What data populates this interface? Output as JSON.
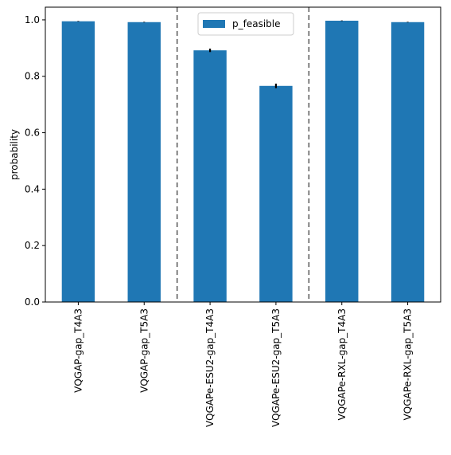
{
  "chart_data": {
    "type": "bar",
    "title": "",
    "xlabel": "",
    "ylabel": "probability",
    "ylim": [
      0,
      1.045
    ],
    "yticks": [
      0.0,
      0.2,
      0.4,
      0.6,
      0.8,
      1.0
    ],
    "ytick_labels": [
      "0.0",
      "0.2",
      "0.4",
      "0.6",
      "0.8",
      "1.0"
    ],
    "categories": [
      "VQGAP-gap_T4A3",
      "VQGAP-gap_T5A3",
      "VQGAPe-ESU2-gap_T4A3",
      "VQGAPe-ESU2-gap_T5A3",
      "VQGAPe-RXL-gap_T4A3",
      "VQGAPe-RXL-gap_T5A3"
    ],
    "series": [
      {
        "name": "p_feasible",
        "color": "#1f77b4",
        "values": [
          0.995,
          0.992,
          0.892,
          0.766,
          0.997,
          0.992
        ],
        "errors": [
          0.001,
          0.001,
          0.006,
          0.008,
          0.001,
          0.001
        ]
      }
    ],
    "group_separators_after": [
      1,
      3
    ],
    "legend": {
      "position": "top-center"
    },
    "grid": false
  }
}
